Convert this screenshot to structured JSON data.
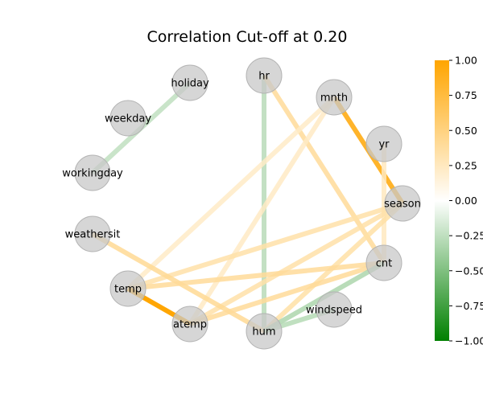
{
  "chart_data": {
    "type": "network",
    "title": "Correlation Cut-off at 0.20",
    "nodes": [
      "holiday",
      "hr",
      "mnth",
      "weekday",
      "yr",
      "workingday",
      "season",
      "weathersit",
      "cnt",
      "temp",
      "windspeed",
      "atemp",
      "hum"
    ],
    "edges": [
      {
        "source": "holiday",
        "target": "workingday",
        "value": -0.25
      },
      {
        "source": "hr",
        "target": "hum",
        "value": -0.28
      },
      {
        "source": "hr",
        "target": "cnt",
        "value": 0.4
      },
      {
        "source": "mnth",
        "target": "season",
        "value": 0.83
      },
      {
        "source": "mnth",
        "target": "temp",
        "value": 0.22
      },
      {
        "source": "mnth",
        "target": "atemp",
        "value": 0.23
      },
      {
        "source": "yr",
        "target": "cnt",
        "value": 0.25
      },
      {
        "source": "season",
        "target": "temp",
        "value": 0.34
      },
      {
        "source": "season",
        "target": "atemp",
        "value": 0.34
      },
      {
        "source": "season",
        "target": "hum",
        "value": 0.35
      },
      {
        "source": "weathersit",
        "target": "hum",
        "value": 0.42
      },
      {
        "source": "cnt",
        "target": "temp",
        "value": 0.4
      },
      {
        "source": "cnt",
        "target": "atemp",
        "value": 0.4
      },
      {
        "source": "cnt",
        "target": "hum",
        "value": -0.32
      },
      {
        "source": "temp",
        "target": "atemp",
        "value": 0.99
      },
      {
        "source": "windspeed",
        "target": "hum",
        "value": -0.29
      }
    ],
    "colorbar": {
      "ticks": [
        "1.00",
        "0.75",
        "0.50",
        "0.25",
        "0.00",
        "−0.25",
        "−0.50",
        "−0.75",
        "−1.00"
      ],
      "range": [
        -1.0,
        1.0
      ],
      "colors": {
        "low": "#008000",
        "mid": "#ffffff",
        "high": "#ffa500"
      }
    },
    "node_color": "#c8c8c8"
  }
}
